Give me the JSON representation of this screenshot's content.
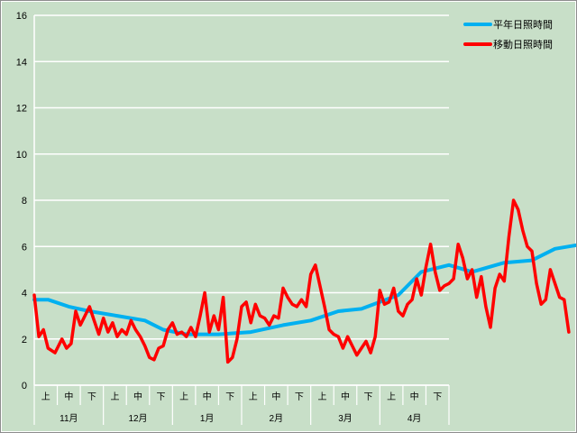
{
  "chart_data": {
    "type": "line",
    "ylim": [
      0,
      16
    ],
    "yticks": [
      0,
      2,
      4,
      6,
      8,
      10,
      12,
      14,
      16
    ],
    "grid": "horizontal",
    "legend_position": "top-right",
    "months": [
      "11月",
      "12月",
      "1月",
      "2月",
      "3月",
      "4月"
    ],
    "periods": [
      "上",
      "中",
      "下"
    ],
    "n_days": 181,
    "series": [
      {
        "name": "平年日照時間",
        "color": "#00b0f0",
        "points": [
          [
            0,
            3.7
          ],
          [
            6,
            3.7
          ],
          [
            15,
            3.4
          ],
          [
            24,
            3.2
          ],
          [
            36,
            3.0
          ],
          [
            48,
            2.8
          ],
          [
            56,
            2.4
          ],
          [
            66,
            2.2
          ],
          [
            80,
            2.2
          ],
          [
            94,
            2.3
          ],
          [
            108,
            2.6
          ],
          [
            120,
            2.8
          ],
          [
            132,
            3.2
          ],
          [
            142,
            3.3
          ],
          [
            150,
            3.6
          ],
          [
            158,
            3.9
          ],
          [
            168,
            4.9
          ],
          [
            180,
            5.2
          ],
          [
            190,
            4.9
          ],
          [
            204,
            5.3
          ],
          [
            216,
            5.4
          ],
          [
            226,
            5.9
          ],
          [
            238,
            6.1
          ]
        ]
      },
      {
        "name": "移動日照時間",
        "color": "#ff0000",
        "points": [
          [
            0,
            3.9
          ],
          [
            2,
            2.1
          ],
          [
            4,
            2.4
          ],
          [
            6,
            1.6
          ],
          [
            9,
            1.4
          ],
          [
            12,
            2.0
          ],
          [
            14,
            1.6
          ],
          [
            16,
            1.8
          ],
          [
            18,
            3.2
          ],
          [
            20,
            2.6
          ],
          [
            22,
            3.0
          ],
          [
            24,
            3.4
          ],
          [
            26,
            2.8
          ],
          [
            28,
            2.2
          ],
          [
            30,
            2.9
          ],
          [
            32,
            2.3
          ],
          [
            34,
            2.7
          ],
          [
            36,
            2.1
          ],
          [
            38,
            2.4
          ],
          [
            40,
            2.2
          ],
          [
            42,
            2.8
          ],
          [
            44,
            2.4
          ],
          [
            46,
            2.1
          ],
          [
            48,
            1.7
          ],
          [
            50,
            1.2
          ],
          [
            52,
            1.1
          ],
          [
            54,
            1.6
          ],
          [
            56,
            1.7
          ],
          [
            58,
            2.4
          ],
          [
            60,
            2.7
          ],
          [
            62,
            2.2
          ],
          [
            64,
            2.3
          ],
          [
            66,
            2.1
          ],
          [
            68,
            2.5
          ],
          [
            70,
            2.1
          ],
          [
            72,
            3.0
          ],
          [
            74,
            4.0
          ],
          [
            76,
            2.3
          ],
          [
            78,
            3.0
          ],
          [
            80,
            2.4
          ],
          [
            82,
            3.8
          ],
          [
            84,
            1.0
          ],
          [
            86,
            1.2
          ],
          [
            88,
            2.0
          ],
          [
            90,
            3.4
          ],
          [
            92,
            3.6
          ],
          [
            94,
            2.7
          ],
          [
            96,
            3.5
          ],
          [
            98,
            3.0
          ],
          [
            100,
            2.9
          ],
          [
            102,
            2.6
          ],
          [
            104,
            3.0
          ],
          [
            106,
            2.9
          ],
          [
            108,
            4.2
          ],
          [
            110,
            3.8
          ],
          [
            112,
            3.5
          ],
          [
            114,
            3.4
          ],
          [
            116,
            3.7
          ],
          [
            118,
            3.4
          ],
          [
            120,
            4.8
          ],
          [
            122,
            5.2
          ],
          [
            124,
            4.3
          ],
          [
            126,
            3.4
          ],
          [
            128,
            2.4
          ],
          [
            130,
            2.2
          ],
          [
            132,
            2.1
          ],
          [
            134,
            1.6
          ],
          [
            136,
            2.1
          ],
          [
            138,
            1.7
          ],
          [
            140,
            1.3
          ],
          [
            142,
            1.6
          ],
          [
            144,
            1.9
          ],
          [
            146,
            1.4
          ],
          [
            148,
            2.1
          ],
          [
            150,
            4.1
          ],
          [
            152,
            3.5
          ],
          [
            154,
            3.6
          ],
          [
            156,
            4.2
          ],
          [
            158,
            3.2
          ],
          [
            160,
            3.0
          ],
          [
            162,
            3.5
          ],
          [
            164,
            3.7
          ],
          [
            166,
            4.6
          ],
          [
            168,
            3.9
          ],
          [
            170,
            5.1
          ],
          [
            172,
            6.1
          ],
          [
            174,
            4.9
          ],
          [
            176,
            4.1
          ],
          [
            178,
            4.3
          ],
          [
            180,
            4.4
          ],
          [
            182,
            4.6
          ],
          [
            184,
            6.1
          ],
          [
            186,
            5.5
          ],
          [
            188,
            4.6
          ],
          [
            190,
            5.0
          ],
          [
            192,
            3.8
          ],
          [
            194,
            4.7
          ],
          [
            196,
            3.4
          ],
          [
            198,
            2.5
          ],
          [
            200,
            4.2
          ],
          [
            202,
            4.8
          ],
          [
            204,
            4.5
          ],
          [
            206,
            6.4
          ],
          [
            208,
            8.0
          ],
          [
            210,
            7.6
          ],
          [
            212,
            6.7
          ],
          [
            214,
            6.0
          ],
          [
            216,
            5.8
          ],
          [
            218,
            4.4
          ],
          [
            220,
            3.5
          ],
          [
            222,
            3.7
          ],
          [
            224,
            5.0
          ],
          [
            226,
            4.4
          ],
          [
            228,
            3.8
          ],
          [
            230,
            3.7
          ],
          [
            232,
            2.3
          ]
        ]
      }
    ]
  }
}
